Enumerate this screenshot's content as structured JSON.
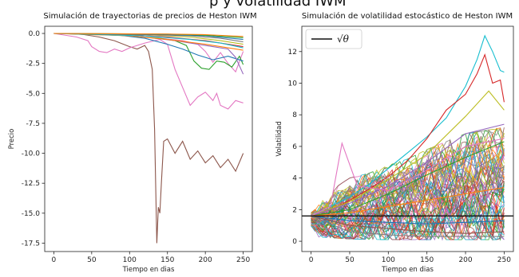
{
  "header_fragment": "p y volatilidad IWM",
  "chart_data": [
    {
      "type": "line",
      "title": "Simulación de trayectorias de precios de Heston IWM",
      "xlabel": "Tiempo en dias",
      "ylabel": "Precio",
      "xlim": [
        -12,
        262
      ],
      "ylim": [
        -18.2,
        0.6
      ],
      "xticks": [
        0,
        50,
        100,
        150,
        200,
        250
      ],
      "yticks": [
        0.0,
        -2.5,
        -5.0,
        -7.5,
        -10.0,
        -12.5,
        -15.0,
        -17.5
      ],
      "ytick_labels": [
        "0.0",
        "-2.5",
        "-5.0",
        "-7.5",
        "-10.0",
        "-12.5",
        "-15.0",
        "-17.5"
      ],
      "grid": false,
      "series": [
        {
          "color": "#8c564b",
          "x": [
            0,
            20,
            40,
            60,
            80,
            100,
            110,
            120,
            125,
            130,
            133,
            136,
            138,
            140,
            142,
            145,
            150,
            160,
            170,
            180,
            190,
            200,
            210,
            220,
            230,
            240,
            250
          ],
          "y": [
            0,
            0,
            -0.1,
            -0.3,
            -0.6,
            -1.1,
            -1.3,
            -1.0,
            -1.5,
            -3.0,
            -8.0,
            -17.5,
            -14.5,
            -15.0,
            -12.5,
            -9.0,
            -8.8,
            -10.0,
            -9.0,
            -10.5,
            -9.8,
            -10.8,
            -10.2,
            -11.2,
            -10.5,
            -11.5,
            -10.0
          ]
        },
        {
          "color": "#e377c2",
          "x": [
            0,
            30,
            45,
            50,
            60,
            70,
            80,
            90,
            100,
            120,
            140,
            150,
            160,
            170,
            180,
            190,
            200,
            210,
            215,
            220,
            230,
            240,
            250
          ],
          "y": [
            0,
            -0.3,
            -0.6,
            -1.1,
            -1.5,
            -1.6,
            -1.3,
            -1.5,
            -1.2,
            -0.8,
            -0.5,
            -0.9,
            -3.0,
            -4.5,
            -6.0,
            -5.3,
            -4.9,
            -5.6,
            -5.0,
            -6.0,
            -6.3,
            -5.6,
            -5.8
          ]
        },
        {
          "color": "#e377c2",
          "x": [
            0,
            60,
            100,
            140,
            170,
            190,
            200,
            210,
            220,
            230,
            240,
            250
          ],
          "y": [
            0,
            -0.1,
            -0.2,
            -0.4,
            -0.6,
            -0.9,
            -1.5,
            -2.4,
            -1.6,
            -2.5,
            -3.2,
            -1.5
          ]
        },
        {
          "color": "#2ca02c",
          "x": [
            0,
            60,
            100,
            140,
            160,
            175,
            185,
            195,
            205,
            215,
            225,
            235,
            245,
            250
          ],
          "y": [
            0,
            -0.1,
            -0.2,
            -0.4,
            -0.6,
            -1.0,
            -2.3,
            -2.9,
            -3.0,
            -2.3,
            -2.4,
            -2.8,
            -1.9,
            -2.6
          ]
        },
        {
          "color": "#1f77b4",
          "x": [
            0,
            80,
            120,
            150,
            170,
            190,
            210,
            230,
            250
          ],
          "y": [
            0,
            -0.1,
            -0.4,
            -0.9,
            -1.3,
            -1.8,
            -2.2,
            -1.9,
            -2.3
          ]
        },
        {
          "color": "#9467bd",
          "x": [
            0,
            80,
            120,
            160,
            200,
            230,
            240,
            250
          ],
          "y": [
            0,
            -0.1,
            -0.3,
            -0.6,
            -1.0,
            -1.3,
            -2.0,
            -3.4
          ]
        },
        {
          "color": "#ff7f0e",
          "x": [
            0,
            100,
            150,
            200,
            230,
            250
          ],
          "y": [
            0,
            -0.2,
            -0.5,
            -0.9,
            -1.2,
            -1.4
          ]
        },
        {
          "color": "#d62728",
          "x": [
            0,
            100,
            150,
            200,
            230,
            250
          ],
          "y": [
            0,
            -0.1,
            -0.3,
            -0.6,
            -0.9,
            -1.1
          ]
        },
        {
          "color": "#17becf",
          "x": [
            0,
            120,
            180,
            220,
            250
          ],
          "y": [
            0,
            -0.2,
            -0.5,
            -0.8,
            -1.2
          ]
        },
        {
          "color": "#bcbd22",
          "x": [
            0,
            120,
            180,
            220,
            250
          ],
          "y": [
            0,
            -0.1,
            -0.3,
            -0.6,
            -0.9
          ]
        },
        {
          "color": "#7f7f7f",
          "x": [
            0,
            120,
            180,
            220,
            250
          ],
          "y": [
            0,
            -0.1,
            -0.2,
            -0.4,
            -0.7
          ]
        },
        {
          "color": "#1f77b4",
          "x": [
            0,
            150,
            200,
            250
          ],
          "y": [
            0,
            -0.1,
            -0.2,
            -0.5
          ]
        },
        {
          "color": "#2ca02c",
          "x": [
            0,
            150,
            200,
            250
          ],
          "y": [
            0,
            -0.05,
            -0.15,
            -0.35
          ]
        },
        {
          "color": "#ff7f0e",
          "x": [
            0,
            150,
            200,
            250
          ],
          "y": [
            0,
            -0.05,
            -0.1,
            -0.25
          ]
        }
      ]
    },
    {
      "type": "line",
      "title": "Simulación de volatilidad estocástico de Heston IWM",
      "xlabel": "Tiempo en dias",
      "ylabel": "Volatilidad",
      "xlim": [
        -12,
        262
      ],
      "ylim": [
        -0.65,
        13.6
      ],
      "xticks": [
        0,
        50,
        100,
        150,
        200,
        250
      ],
      "yticks": [
        0,
        2,
        4,
        6,
        8,
        10,
        12
      ],
      "ytick_labels": [
        "0",
        "2",
        "4",
        "6",
        "8",
        "10",
        "12"
      ],
      "grid": false,
      "legend": {
        "placement": "top-left",
        "entries": [
          "√θ"
        ]
      },
      "sqrt_theta": 1.6,
      "band_lower": [
        [
          0,
          0.3
        ],
        [
          50,
          0.15
        ],
        [
          100,
          0.1
        ],
        [
          150,
          0.1
        ],
        [
          200,
          0.1
        ],
        [
          250,
          0.1
        ]
      ],
      "band_upper": [
        [
          0,
          1.8
        ],
        [
          25,
          3.2
        ],
        [
          50,
          4.0
        ],
        [
          75,
          4.3
        ],
        [
          100,
          4.8
        ],
        [
          125,
          5.2
        ],
        [
          150,
          5.8
        ],
        [
          175,
          6.3
        ],
        [
          200,
          6.8
        ],
        [
          225,
          7.0
        ],
        [
          250,
          7.2
        ]
      ],
      "series": [
        {
          "color": "#17becf",
          "x": [
            0,
            25,
            50,
            75,
            100,
            125,
            150,
            175,
            200,
            215,
            225,
            235,
            245,
            250
          ],
          "y": [
            1.6,
            2.2,
            2.8,
            3.6,
            4.6,
            5.6,
            6.6,
            7.8,
            9.8,
            11.5,
            13.0,
            12.0,
            10.8,
            10.7
          ]
        },
        {
          "color": "#d62728",
          "x": [
            0,
            25,
            50,
            75,
            100,
            125,
            150,
            175,
            200,
            215,
            225,
            235,
            245,
            250
          ],
          "y": [
            1.6,
            2.0,
            2.6,
            3.3,
            4.1,
            5.1,
            6.5,
            8.3,
            9.3,
            10.6,
            11.8,
            10.0,
            10.2,
            8.8
          ]
        },
        {
          "color": "#bcbd22",
          "x": [
            0,
            50,
            100,
            150,
            200,
            230,
            250
          ],
          "y": [
            1.6,
            2.5,
            3.9,
            5.5,
            7.9,
            9.5,
            8.3
          ]
        },
        {
          "color": "#9467bd",
          "x": [
            0,
            50,
            100,
            150,
            200,
            250
          ],
          "y": [
            1.6,
            2.4,
            3.5,
            5.0,
            6.8,
            7.4
          ]
        },
        {
          "color": "#e377c2",
          "x": [
            0,
            25,
            40,
            60,
            100,
            150,
            200,
            250
          ],
          "y": [
            1.6,
            2.2,
            6.2,
            3.5,
            3.2,
            4.5,
            6.0,
            6.5
          ]
        },
        {
          "color": "#2ca02c",
          "x": [
            0,
            50,
            100,
            150,
            200,
            250
          ],
          "y": [
            1.6,
            2.0,
            3.0,
            4.2,
            5.3,
            6.3
          ]
        },
        {
          "color": "#ff7f0e",
          "x": [
            0,
            50,
            100,
            150,
            200,
            250
          ],
          "y": [
            1.6,
            1.8,
            2.2,
            2.6,
            3.0,
            3.4
          ]
        },
        {
          "color": "#1f77b4",
          "x": [
            0,
            50,
            100,
            150,
            200,
            250
          ],
          "y": [
            1.6,
            1.3,
            1.2,
            1.1,
            1.2,
            1.3
          ]
        },
        {
          "color": "#8c564b",
          "x": [
            0,
            50,
            100,
            150,
            200,
            250
          ],
          "y": [
            1.6,
            1.0,
            0.8,
            0.6,
            0.5,
            0.6
          ]
        },
        {
          "color": "#7f7f7f",
          "x": [
            0,
            50,
            100,
            150,
            200,
            250
          ],
          "y": [
            1.6,
            0.6,
            0.4,
            0.3,
            0.3,
            0.3
          ]
        }
      ]
    }
  ]
}
